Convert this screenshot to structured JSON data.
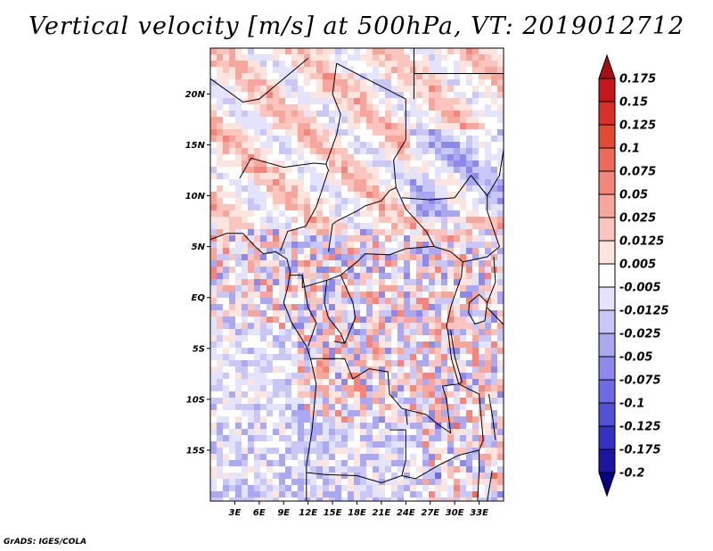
{
  "title": "Vertical velocity [m/s] at 500hPa, VT: 2019012712",
  "credit": "GrADS: IGES/COLA",
  "map": {
    "lon_range": [
      0,
      36
    ],
    "lat_range": [
      -20,
      24.5
    ],
    "lon_ticks": [
      "3E",
      "6E",
      "9E",
      "12E",
      "15E",
      "18E",
      "21E",
      "24E",
      "27E",
      "30E",
      "33E"
    ],
    "lat_ticks": [
      "20N",
      "15N",
      "10N",
      "5N",
      "EQ",
      "5S",
      "10S",
      "15S"
    ]
  },
  "colorbar": {
    "levels": [
      "0.175",
      "0.15",
      "0.125",
      "0.1",
      "0.075",
      "0.05",
      "0.025",
      "0.0125",
      "0.005",
      "-0.005",
      "-0.0125",
      "-0.025",
      "-0.05",
      "-0.075",
      "-0.1",
      "-0.125",
      "-0.175",
      "-0.2"
    ],
    "colors": [
      "#a50f15",
      "#c2181c",
      "#d73027",
      "#e34a33",
      "#ee6a5a",
      "#f4857a",
      "#f7a69b",
      "#fbc5bd",
      "#fde4df",
      "#ffffff",
      "#e3e3fb",
      "#c8c7f6",
      "#aaa8f1",
      "#8c89eb",
      "#6e6ae3",
      "#5350d8",
      "#3430c4",
      "#1d159f",
      "#0a0080"
    ]
  }
}
